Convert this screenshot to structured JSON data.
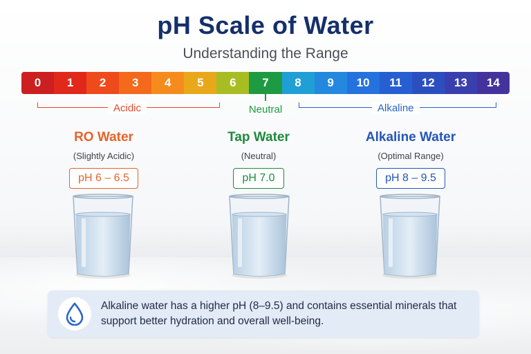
{
  "header": {
    "title": "pH Scale of Water",
    "subtitle": "Understanding the Range"
  },
  "scale": {
    "cells": [
      {
        "label": "0",
        "color": "#cc1f1f"
      },
      {
        "label": "1",
        "color": "#e0281b"
      },
      {
        "label": "2",
        "color": "#ef4a1c"
      },
      {
        "label": "3",
        "color": "#f4691b"
      },
      {
        "label": "4",
        "color": "#f68b1d"
      },
      {
        "label": "5",
        "color": "#e9a81a"
      },
      {
        "label": "6",
        "color": "#a7bd22"
      },
      {
        "label": "7",
        "color": "#1e9a42"
      },
      {
        "label": "8",
        "color": "#1f9fd6"
      },
      {
        "label": "9",
        "color": "#2388de"
      },
      {
        "label": "10",
        "color": "#2571dd"
      },
      {
        "label": "11",
        "color": "#275fd2"
      },
      {
        "label": "12",
        "color": "#2c4fc0"
      },
      {
        "label": "13",
        "color": "#3a3fae"
      },
      {
        "label": "14",
        "color": "#44339c"
      }
    ],
    "ranges": {
      "acidic": "Acidic",
      "neutral": "Neutral",
      "alkaline": "Alkaline"
    }
  },
  "cards": {
    "ro": {
      "title": "RO Water",
      "subtitle": "(Slightly Acidic)",
      "ph": "pH 6 – 6.5",
      "color": "#e4632b"
    },
    "tap": {
      "title": "Tap Water",
      "subtitle": "(Neutral)",
      "ph": "pH 7.0",
      "color": "#1e8a3e"
    },
    "alkaline": {
      "title": "Alkaline Water",
      "subtitle": "(Optimal Range)",
      "ph": "pH 8 – 9.5",
      "color": "#2456b8"
    }
  },
  "info": {
    "text": "Alkaline water has a higher pH (8–9.5) and contains essential minerals that support better hydration and overall well-being.",
    "icon": "water-drop-icon"
  }
}
